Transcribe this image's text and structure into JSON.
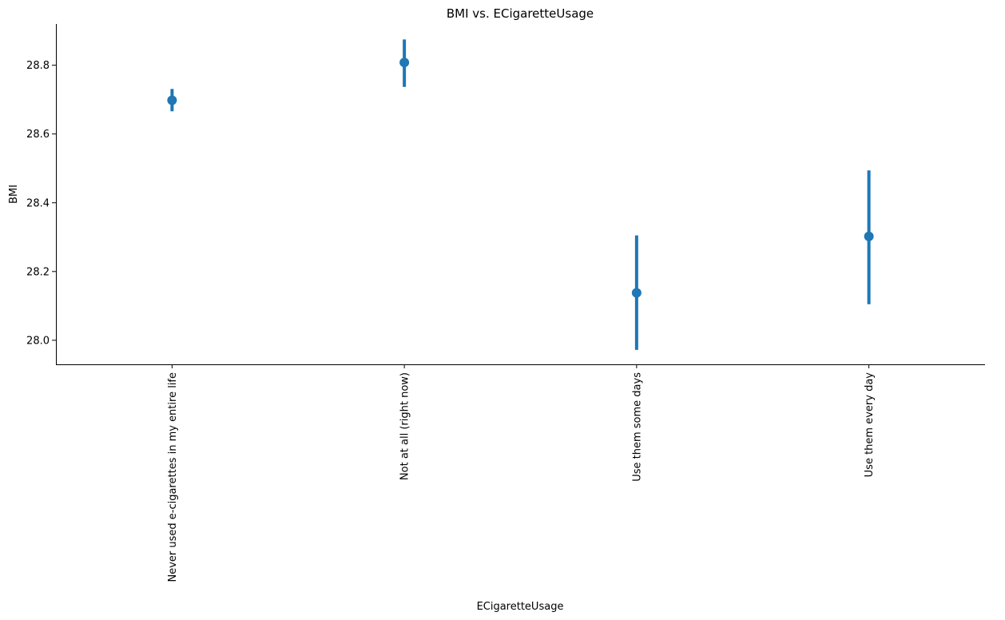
{
  "chart_data": {
    "type": "scatter",
    "title": "BMI vs. ECigaretteUsage",
    "xlabel": "ECigaretteUsage",
    "ylabel": "BMI",
    "categories": [
      "Never used e-cigarettes in my entire life",
      "Not at all (right now)",
      "Use them some days",
      "Use them every day"
    ],
    "values": [
      28.698,
      28.808,
      28.138,
      28.302
    ],
    "error_low": [
      28.666,
      28.737,
      27.972,
      28.105
    ],
    "error_high": [
      28.731,
      28.875,
      28.305,
      28.494
    ],
    "ylim": [
      27.93,
      28.92
    ],
    "yticks": [
      28.0,
      28.2,
      28.4,
      28.6,
      28.8
    ],
    "ytick_labels": [
      "28.0",
      "28.2",
      "28.4",
      "28.6",
      "28.8"
    ],
    "color": "#1f77b4",
    "grid": false,
    "legend": "none"
  }
}
